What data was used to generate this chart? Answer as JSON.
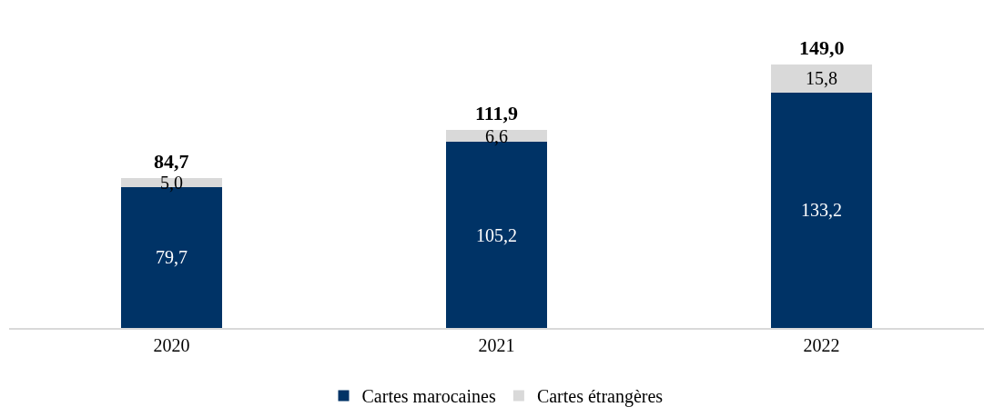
{
  "chart_data": {
    "type": "bar",
    "stacked": true,
    "categories": [
      "2020",
      "2021",
      "2022"
    ],
    "series": [
      {
        "name": "Cartes marocaines",
        "color": "#003366",
        "values": [
          79.7,
          105.2,
          133.2
        ],
        "value_labels": [
          "79,7",
          "105,2",
          "133,2"
        ]
      },
      {
        "name": "Cartes étrangères",
        "color": "#d9d9d9",
        "values": [
          5.0,
          6.6,
          15.8
        ],
        "value_labels": [
          "5,0",
          "6,6",
          "15,8"
        ]
      }
    ],
    "totals": [
      "84,7",
      "111,9",
      "149,0"
    ],
    "legend": "bottom",
    "tick_labels": "x"
  }
}
